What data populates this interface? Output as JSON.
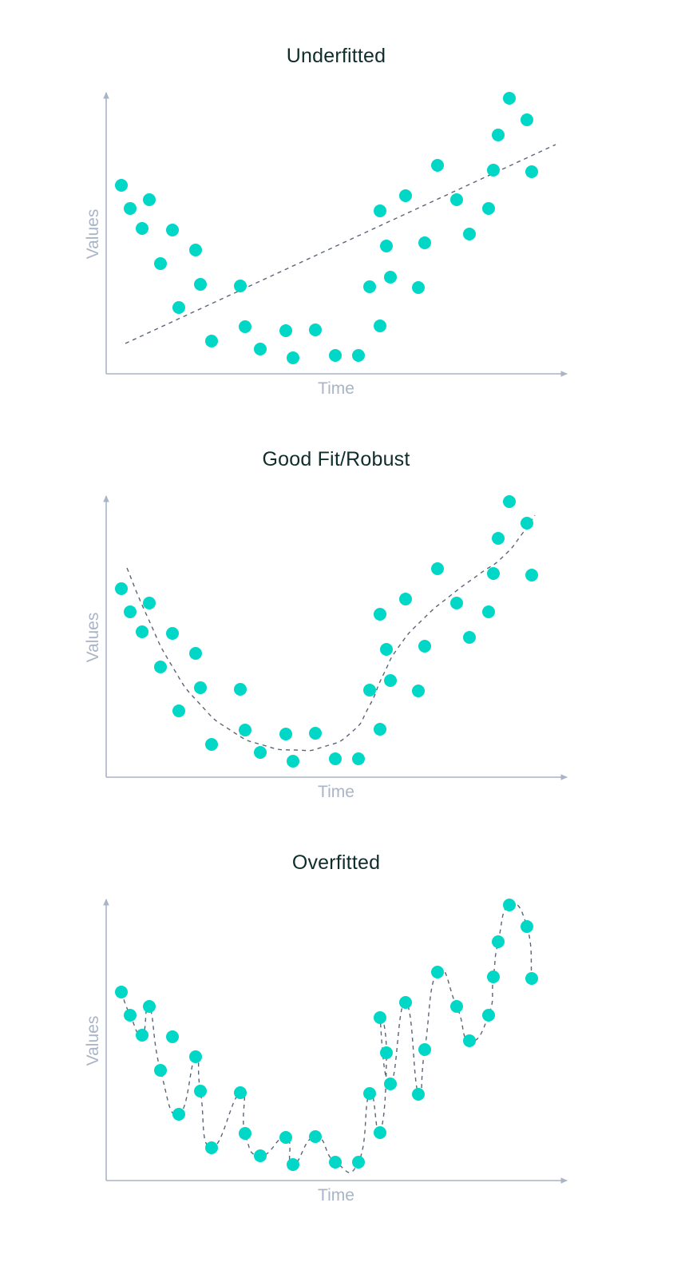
{
  "colors": {
    "point": "#00d7c6",
    "axis": "#a9b4c6",
    "fit_line": "#5b6577",
    "title": "#0f2e2b"
  },
  "chart_data": [
    {
      "type": "scatter",
      "title": "Underfitted",
      "xlabel": "Time",
      "ylabel": "Values",
      "grid": false,
      "legend": null,
      "fit": "linear",
      "note": "Point coordinates in pixel space of the panel (x right, y down); axes have no tick labels.",
      "points": [
        [
          152,
          232
        ],
        [
          163,
          261
        ],
        [
          178,
          286
        ],
        [
          187,
          250
        ],
        [
          201,
          330
        ],
        [
          216,
          288
        ],
        [
          224,
          385
        ],
        [
          245,
          313
        ],
        [
          251,
          356
        ],
        [
          265,
          427
        ],
        [
          301,
          358
        ],
        [
          307,
          409
        ],
        [
          326,
          437
        ],
        [
          358,
          414
        ],
        [
          367,
          448
        ],
        [
          395,
          413
        ],
        [
          420,
          445
        ],
        [
          449,
          445
        ],
        [
          463,
          359
        ],
        [
          476,
          264
        ],
        [
          476,
          408
        ],
        [
          484,
          308
        ],
        [
          489,
          347
        ],
        [
          508,
          245
        ],
        [
          524,
          360
        ],
        [
          532,
          304
        ],
        [
          548,
          207
        ],
        [
          572,
          250
        ],
        [
          588,
          293
        ],
        [
          612,
          261
        ],
        [
          618,
          213
        ],
        [
          624,
          169
        ],
        [
          638,
          123
        ],
        [
          660,
          150
        ],
        [
          666,
          215
        ]
      ]
    },
    {
      "type": "scatter",
      "title": "Good Fit/Robust",
      "xlabel": "Time",
      "ylabel": "Values",
      "grid": false,
      "legend": null,
      "fit": "smooth U-shaped curve",
      "points": "same as Underfitted"
    },
    {
      "type": "scatter",
      "title": "Overfitted",
      "xlabel": "Time",
      "ylabel": "Values",
      "grid": false,
      "legend": null,
      "fit": "curve passing through every point",
      "points": "same as Underfitted"
    }
  ],
  "panels": [
    {
      "title": "Underfitted",
      "xlabel": "Time",
      "ylabel": "Values",
      "fit": "linear"
    },
    {
      "title": "Good Fit/Robust",
      "xlabel": "Time",
      "ylabel": "Values",
      "fit": "robust"
    },
    {
      "title": "Overfitted",
      "xlabel": "Time",
      "ylabel": "Values",
      "fit": "overfit"
    }
  ]
}
